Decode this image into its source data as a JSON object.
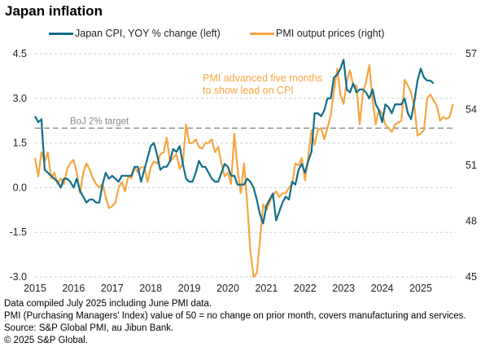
{
  "title": "Japan inflation",
  "footer": [
    "Data compiled July 2025 including June PMI data.",
    "PMI (Purchasing Managers' Index) value of 50 = no change on prior month, covers manufacturing and services.",
    "Source: S&P Global PMI, au Jibun Bank.",
    "© 2025 S&P Global."
  ],
  "chart_data": {
    "type": "line",
    "title": "Japan inflation",
    "x_start": "2015-01",
    "x_frequency": "monthly",
    "x_tick_labels": [
      "2015",
      "2016",
      "2017",
      "2018",
      "2019",
      "2020",
      "2021",
      "2022",
      "2023",
      "2024",
      "2025"
    ],
    "left_axis": {
      "ylim": [
        -3.0,
        4.5
      ],
      "ticks": [
        "4.5",
        "3.0",
        "1.5",
        "0.0",
        "-1.5",
        "-3.0"
      ]
    },
    "right_axis": {
      "ylim": [
        45,
        57
      ],
      "ticks": [
        "57",
        "54",
        "51",
        "48",
        "45"
      ]
    },
    "grid": true,
    "legend_position": "top",
    "reference_line": {
      "value": 2.0,
      "axis": "left",
      "label": "BoJ 2% target"
    },
    "annotation": [
      "PMI advanced five months",
      "to show lead on CPI"
    ],
    "series": [
      {
        "name": "Japan CPI, YOY % change (left)",
        "axis": "left",
        "color": "#0f6e8b",
        "start": "2015-01",
        "values": [
          2.4,
          2.2,
          2.3,
          0.6,
          0.5,
          0.4,
          0.3,
          0.2,
          0.0,
          0.3,
          0.3,
          0.2,
          0.0,
          0.3,
          -0.1,
          -0.3,
          -0.5,
          -0.4,
          -0.4,
          -0.5,
          -0.5,
          0.1,
          0.5,
          0.3,
          0.4,
          0.3,
          0.2,
          0.4,
          0.4,
          0.4,
          0.4,
          0.7,
          0.7,
          0.2,
          0.6,
          1.0,
          1.4,
          1.5,
          1.1,
          0.6,
          0.7,
          0.7,
          0.9,
          1.3,
          1.2,
          1.4,
          0.8,
          0.3,
          0.2,
          0.2,
          0.5,
          0.9,
          0.7,
          0.7,
          0.5,
          0.3,
          0.2,
          0.2,
          0.5,
          0.8,
          0.7,
          0.4,
          0.4,
          0.1,
          0.1,
          0.1,
          0.3,
          0.2,
          0.0,
          -0.4,
          -0.9,
          -1.2,
          -0.6,
          -0.4,
          -0.2,
          -1.1,
          -0.8,
          -0.5,
          -0.3,
          -0.4,
          0.2,
          0.1,
          0.6,
          0.8,
          0.5,
          0.9,
          1.2,
          2.5,
          2.5,
          2.4,
          2.6,
          3.0,
          3.0,
          3.7,
          3.8,
          4.0,
          4.3,
          3.3,
          3.2,
          3.5,
          3.2,
          3.3,
          3.3,
          3.2,
          3.0,
          3.3,
          2.8,
          2.6,
          2.2,
          2.8,
          2.7,
          2.5,
          2.8,
          2.8,
          2.8,
          3.0,
          2.5,
          2.3,
          2.9,
          3.6,
          4.0,
          3.7,
          3.6,
          3.6,
          3.5
        ]
      },
      {
        "name": "PMI output prices (right)",
        "axis": "right",
        "color": "#f7a540",
        "start": "2015-01",
        "values": [
          51.4,
          50.4,
          51.7,
          51.2,
          51.7,
          50.3,
          50.6,
          50.0,
          50.3,
          50.0,
          50.8,
          51.1,
          51.3,
          50.6,
          49.5,
          50.6,
          51.1,
          50.8,
          50.3,
          50.0,
          49.8,
          50.0,
          49.3,
          48.7,
          48.8,
          49.0,
          49.8,
          50.1,
          49.6,
          50.4,
          50.3,
          50.9,
          50.6,
          50.9,
          50.9,
          50.1,
          50.9,
          51.2,
          51.1,
          51.6,
          51.7,
          52.5,
          51.2,
          51.4,
          51.6,
          50.8,
          51.1,
          53.2,
          52.2,
          52.2,
          52.4,
          52.0,
          51.9,
          52.2,
          52.2,
          52.4,
          51.7,
          52.0,
          51.1,
          50.4,
          50.6,
          50.0,
          52.7,
          50.8,
          49.5,
          51.1,
          49.0,
          46.4,
          45.0,
          45.2,
          47.0,
          48.9,
          48.6,
          49.0,
          49.4,
          49.6,
          49.3,
          49.5,
          49.5,
          49.8,
          50.0,
          51.1,
          51.0,
          51.4,
          50.2,
          51.5,
          52.9,
          52.1,
          52.9,
          53.0,
          52.4,
          53.0,
          53.7,
          55.0,
          56.2,
          54.8,
          54.3,
          55.5,
          56.1,
          55.3,
          55.3,
          53.2,
          54.9,
          55.5,
          56.4,
          54.5,
          53.2,
          54.0,
          53.8,
          53.2,
          53.0,
          52.8,
          53.2,
          53.3,
          53.4,
          55.6,
          55.3,
          54.9,
          54.2,
          52.6,
          52.7,
          52.9,
          54.6,
          54.8,
          54.5,
          54.2,
          53.4,
          53.6,
          53.5,
          53.6,
          54.3
        ]
      }
    ]
  }
}
